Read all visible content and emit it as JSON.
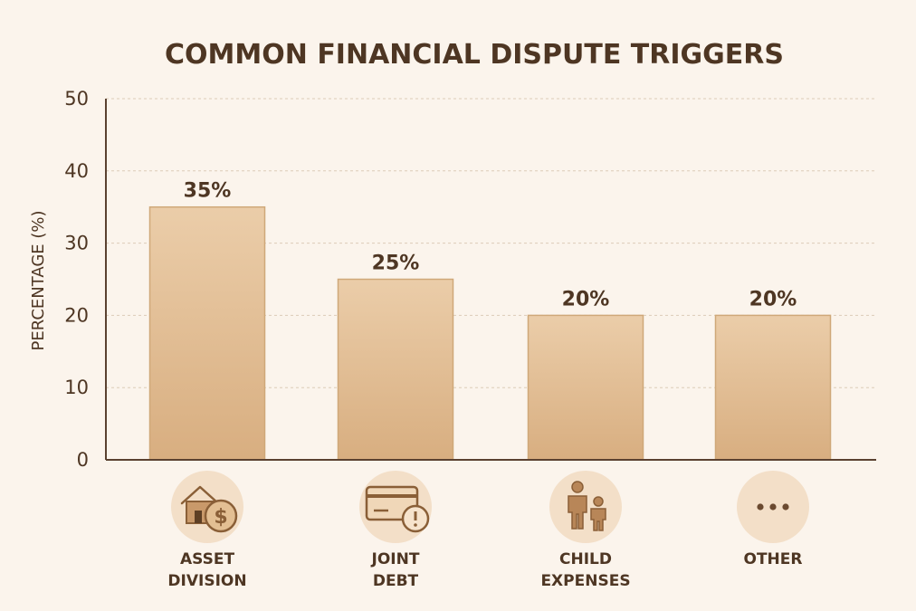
{
  "chart_data": {
    "type": "bar",
    "title": "COMMON FINANCIAL DISPUTE TRIGGERS",
    "ylabel": "PERCENTAGE (%)",
    "xlabel": "",
    "ylim": [
      0,
      50
    ],
    "yticks": [
      0,
      10,
      20,
      30,
      40,
      50
    ],
    "grid": true,
    "categories": [
      {
        "lines": [
          "ASSET",
          "DIVISION"
        ],
        "icon": "house-dollar-icon"
      },
      {
        "lines": [
          "JOINT",
          "DEBT"
        ],
        "icon": "credit-card-alert-icon"
      },
      {
        "lines": [
          "CHILD",
          "EXPENSES"
        ],
        "icon": "parent-child-icon"
      },
      {
        "lines": [
          "OTHER"
        ],
        "icon": "ellipsis-icon"
      }
    ],
    "values": [
      35,
      25,
      20,
      20
    ],
    "data_labels": [
      "35%",
      "25%",
      "20%",
      "20%"
    ],
    "colors": {
      "bar_top": "#ebcda9",
      "bar_bottom": "#d8ae80",
      "background": "#fbf4ec",
      "text": "#4e3623"
    }
  }
}
